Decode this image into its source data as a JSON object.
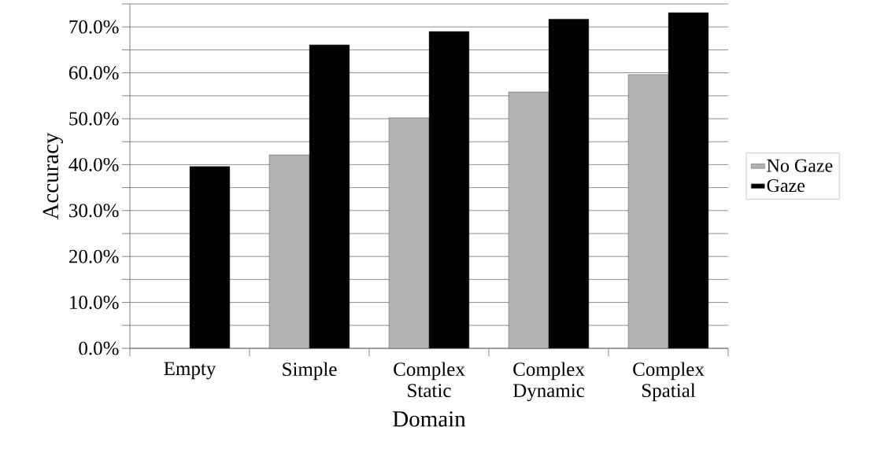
{
  "chart_data": {
    "type": "bar",
    "xlabel": "Domain",
    "ylabel": "Accuracy",
    "categories": [
      "Empty",
      "Simple",
      "Complex Static",
      "Complex Dynamic",
      "Complex Spatial"
    ],
    "series": [
      {
        "name": "No Gaze",
        "color": "#b3b3b3",
        "values": [
          null,
          42.1,
          50.2,
          55.8,
          59.6
        ]
      },
      {
        "name": "Gaze",
        "color": "#000000",
        "values": [
          39.6,
          66.1,
          69.0,
          71.7,
          73.1
        ]
      }
    ],
    "ylim": [
      0,
      75
    ],
    "yticks": [
      {
        "value": 0,
        "label": "0.0%"
      },
      {
        "value": 5,
        "label": null
      },
      {
        "value": 10,
        "label": "10.0%"
      },
      {
        "value": 15,
        "label": null
      },
      {
        "value": 20,
        "label": "20.0%"
      },
      {
        "value": 25,
        "label": null
      },
      {
        "value": 30,
        "label": "30.0%"
      },
      {
        "value": 35,
        "label": null
      },
      {
        "value": 40,
        "label": "40.0%"
      },
      {
        "value": 45,
        "label": null
      },
      {
        "value": 50,
        "label": "50.0%"
      },
      {
        "value": 55,
        "label": null
      },
      {
        "value": 60,
        "label": "60.0%"
      },
      {
        "value": 65,
        "label": null
      },
      {
        "value": 70,
        "label": "70.0%"
      },
      {
        "value": 75,
        "label": null
      }
    ],
    "grid": "y",
    "legend": "right"
  }
}
